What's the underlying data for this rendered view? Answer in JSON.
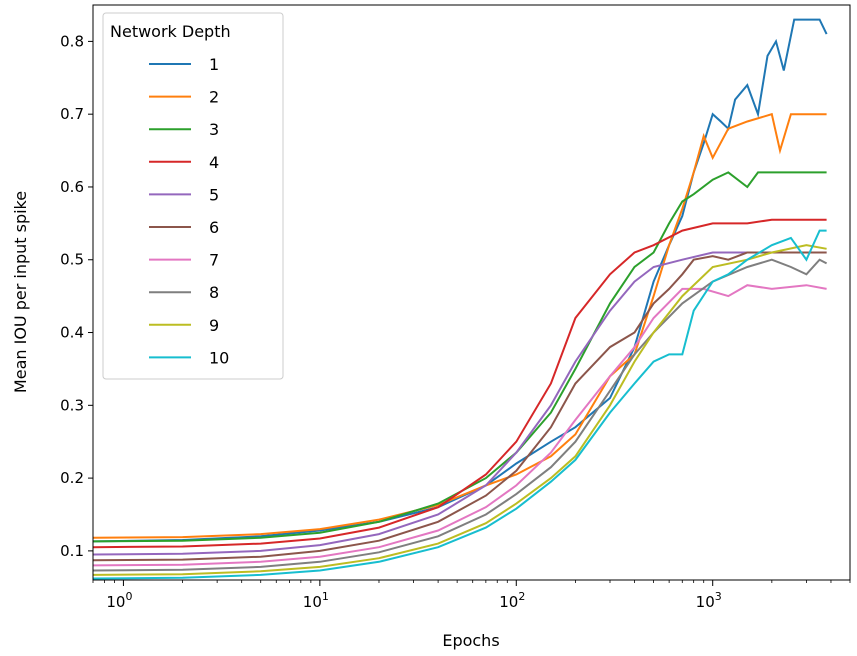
{
  "chart_data": {
    "type": "line",
    "xlabel": "Epochs",
    "ylabel": "Mean IOU per input spike",
    "xscale": "log",
    "xlim": [
      0.7,
      5000
    ],
    "ylim": [
      0.06,
      0.85
    ],
    "grid": false,
    "x_ticks": [
      {
        "value": 1,
        "base": "10",
        "exp": "0"
      },
      {
        "value": 10,
        "base": "10",
        "exp": "1"
      },
      {
        "value": 100,
        "base": "10",
        "exp": "2"
      },
      {
        "value": 1000,
        "base": "10",
        "exp": "3"
      }
    ],
    "y_ticks": [
      0.1,
      0.2,
      0.3,
      0.4,
      0.5,
      0.6,
      0.7,
      0.8
    ],
    "legend": {
      "title": "Network Depth",
      "placement": "upper left"
    },
    "series": [
      {
        "name": "1",
        "color": "#1f77b4",
        "points": [
          [
            0.7,
            0.113
          ],
          [
            2,
            0.115
          ],
          [
            5,
            0.12
          ],
          [
            10,
            0.128
          ],
          [
            20,
            0.14
          ],
          [
            40,
            0.16
          ],
          [
            70,
            0.19
          ],
          [
            100,
            0.22
          ],
          [
            150,
            0.25
          ],
          [
            200,
            0.27
          ],
          [
            300,
            0.31
          ],
          [
            400,
            0.38
          ],
          [
            500,
            0.47
          ],
          [
            600,
            0.52
          ],
          [
            700,
            0.56
          ],
          [
            800,
            0.62
          ],
          [
            900,
            0.66
          ],
          [
            1000,
            0.7
          ],
          [
            1100,
            0.69
          ],
          [
            1200,
            0.68
          ],
          [
            1300,
            0.72
          ],
          [
            1500,
            0.74
          ],
          [
            1700,
            0.7
          ],
          [
            1900,
            0.78
          ],
          [
            2100,
            0.8
          ],
          [
            2300,
            0.76
          ],
          [
            2600,
            0.83
          ],
          [
            3000,
            0.83
          ],
          [
            3500,
            0.83
          ],
          [
            3800,
            0.81
          ]
        ]
      },
      {
        "name": "2",
        "color": "#ff7f0e",
        "points": [
          [
            0.7,
            0.118
          ],
          [
            2,
            0.119
          ],
          [
            5,
            0.123
          ],
          [
            10,
            0.13
          ],
          [
            20,
            0.143
          ],
          [
            40,
            0.163
          ],
          [
            70,
            0.19
          ],
          [
            100,
            0.205
          ],
          [
            150,
            0.23
          ],
          [
            200,
            0.26
          ],
          [
            300,
            0.34
          ],
          [
            400,
            0.37
          ],
          [
            500,
            0.45
          ],
          [
            600,
            0.52
          ],
          [
            700,
            0.57
          ],
          [
            800,
            0.62
          ],
          [
            900,
            0.67
          ],
          [
            1000,
            0.64
          ],
          [
            1200,
            0.68
          ],
          [
            1500,
            0.69
          ],
          [
            2000,
            0.7
          ],
          [
            2200,
            0.65
          ],
          [
            2500,
            0.7
          ],
          [
            3000,
            0.7
          ],
          [
            3800,
            0.7
          ]
        ]
      },
      {
        "name": "3",
        "color": "#2ca02c",
        "points": [
          [
            0.7,
            0.113
          ],
          [
            2,
            0.114
          ],
          [
            5,
            0.118
          ],
          [
            10,
            0.125
          ],
          [
            20,
            0.14
          ],
          [
            40,
            0.165
          ],
          [
            70,
            0.2
          ],
          [
            100,
            0.235
          ],
          [
            150,
            0.29
          ],
          [
            200,
            0.35
          ],
          [
            300,
            0.44
          ],
          [
            400,
            0.49
          ],
          [
            500,
            0.51
          ],
          [
            600,
            0.55
          ],
          [
            700,
            0.58
          ],
          [
            800,
            0.59
          ],
          [
            1000,
            0.61
          ],
          [
            1200,
            0.62
          ],
          [
            1500,
            0.6
          ],
          [
            1700,
            0.62
          ],
          [
            2000,
            0.62
          ],
          [
            3000,
            0.62
          ],
          [
            3800,
            0.62
          ]
        ]
      },
      {
        "name": "4",
        "color": "#d62728",
        "points": [
          [
            0.7,
            0.105
          ],
          [
            2,
            0.106
          ],
          [
            5,
            0.11
          ],
          [
            10,
            0.117
          ],
          [
            20,
            0.132
          ],
          [
            40,
            0.16
          ],
          [
            70,
            0.205
          ],
          [
            100,
            0.25
          ],
          [
            150,
            0.33
          ],
          [
            200,
            0.42
          ],
          [
            300,
            0.48
          ],
          [
            400,
            0.51
          ],
          [
            500,
            0.52
          ],
          [
            700,
            0.54
          ],
          [
            1000,
            0.55
          ],
          [
            1500,
            0.55
          ],
          [
            2000,
            0.555
          ],
          [
            3000,
            0.555
          ],
          [
            3800,
            0.555
          ]
        ]
      },
      {
        "name": "5",
        "color": "#9467bd",
        "points": [
          [
            0.7,
            0.095
          ],
          [
            2,
            0.096
          ],
          [
            5,
            0.1
          ],
          [
            10,
            0.108
          ],
          [
            20,
            0.123
          ],
          [
            40,
            0.15
          ],
          [
            70,
            0.19
          ],
          [
            100,
            0.235
          ],
          [
            150,
            0.3
          ],
          [
            200,
            0.36
          ],
          [
            300,
            0.43
          ],
          [
            400,
            0.47
          ],
          [
            500,
            0.49
          ],
          [
            700,
            0.5
          ],
          [
            1000,
            0.51
          ],
          [
            1500,
            0.51
          ],
          [
            2000,
            0.51
          ],
          [
            3000,
            0.51
          ],
          [
            3800,
            0.51
          ]
        ]
      },
      {
        "name": "6",
        "color": "#8c564b",
        "points": [
          [
            0.7,
            0.087
          ],
          [
            2,
            0.088
          ],
          [
            5,
            0.092
          ],
          [
            10,
            0.1
          ],
          [
            20,
            0.114
          ],
          [
            40,
            0.14
          ],
          [
            70,
            0.176
          ],
          [
            100,
            0.21
          ],
          [
            150,
            0.27
          ],
          [
            200,
            0.33
          ],
          [
            300,
            0.38
          ],
          [
            400,
            0.4
          ],
          [
            500,
            0.44
          ],
          [
            600,
            0.46
          ],
          [
            700,
            0.48
          ],
          [
            800,
            0.5
          ],
          [
            1000,
            0.505
          ],
          [
            1200,
            0.5
          ],
          [
            1500,
            0.51
          ],
          [
            2000,
            0.51
          ],
          [
            3000,
            0.51
          ],
          [
            3800,
            0.51
          ]
        ]
      },
      {
        "name": "7",
        "color": "#e377c2",
        "points": [
          [
            0.7,
            0.08
          ],
          [
            2,
            0.081
          ],
          [
            5,
            0.085
          ],
          [
            10,
            0.092
          ],
          [
            20,
            0.105
          ],
          [
            40,
            0.128
          ],
          [
            70,
            0.16
          ],
          [
            100,
            0.19
          ],
          [
            150,
            0.235
          ],
          [
            200,
            0.28
          ],
          [
            300,
            0.34
          ],
          [
            400,
            0.38
          ],
          [
            500,
            0.42
          ],
          [
            700,
            0.46
          ],
          [
            900,
            0.46
          ],
          [
            1200,
            0.45
          ],
          [
            1500,
            0.465
          ],
          [
            2000,
            0.46
          ],
          [
            3000,
            0.465
          ],
          [
            3800,
            0.46
          ]
        ]
      },
      {
        "name": "8",
        "color": "#7f7f7f",
        "points": [
          [
            0.7,
            0.073
          ],
          [
            2,
            0.074
          ],
          [
            5,
            0.078
          ],
          [
            10,
            0.085
          ],
          [
            20,
            0.098
          ],
          [
            40,
            0.12
          ],
          [
            70,
            0.15
          ],
          [
            100,
            0.178
          ],
          [
            150,
            0.215
          ],
          [
            200,
            0.25
          ],
          [
            300,
            0.32
          ],
          [
            400,
            0.37
          ],
          [
            500,
            0.4
          ],
          [
            700,
            0.44
          ],
          [
            1000,
            0.47
          ],
          [
            1500,
            0.49
          ],
          [
            2000,
            0.5
          ],
          [
            2500,
            0.49
          ],
          [
            3000,
            0.48
          ],
          [
            3500,
            0.5
          ],
          [
            3800,
            0.495
          ]
        ]
      },
      {
        "name": "9",
        "color": "#bcbd22",
        "points": [
          [
            0.7,
            0.067
          ],
          [
            2,
            0.068
          ],
          [
            5,
            0.072
          ],
          [
            10,
            0.078
          ],
          [
            20,
            0.09
          ],
          [
            40,
            0.11
          ],
          [
            70,
            0.138
          ],
          [
            100,
            0.165
          ],
          [
            150,
            0.2
          ],
          [
            200,
            0.23
          ],
          [
            300,
            0.3
          ],
          [
            400,
            0.36
          ],
          [
            500,
            0.4
          ],
          [
            700,
            0.45
          ],
          [
            1000,
            0.49
          ],
          [
            1500,
            0.5
          ],
          [
            2000,
            0.51
          ],
          [
            3000,
            0.52
          ],
          [
            3800,
            0.515
          ]
        ]
      },
      {
        "name": "10",
        "color": "#17becf",
        "points": [
          [
            0.7,
            0.062
          ],
          [
            2,
            0.063
          ],
          [
            5,
            0.067
          ],
          [
            10,
            0.073
          ],
          [
            20,
            0.085
          ],
          [
            40,
            0.105
          ],
          [
            70,
            0.132
          ],
          [
            100,
            0.158
          ],
          [
            150,
            0.195
          ],
          [
            200,
            0.225
          ],
          [
            300,
            0.29
          ],
          [
            400,
            0.33
          ],
          [
            500,
            0.36
          ],
          [
            600,
            0.37
          ],
          [
            700,
            0.37
          ],
          [
            800,
            0.43
          ],
          [
            1000,
            0.47
          ],
          [
            1200,
            0.48
          ],
          [
            1500,
            0.5
          ],
          [
            2000,
            0.52
          ],
          [
            2500,
            0.53
          ],
          [
            3000,
            0.5
          ],
          [
            3500,
            0.54
          ],
          [
            3800,
            0.54
          ]
        ]
      }
    ]
  }
}
